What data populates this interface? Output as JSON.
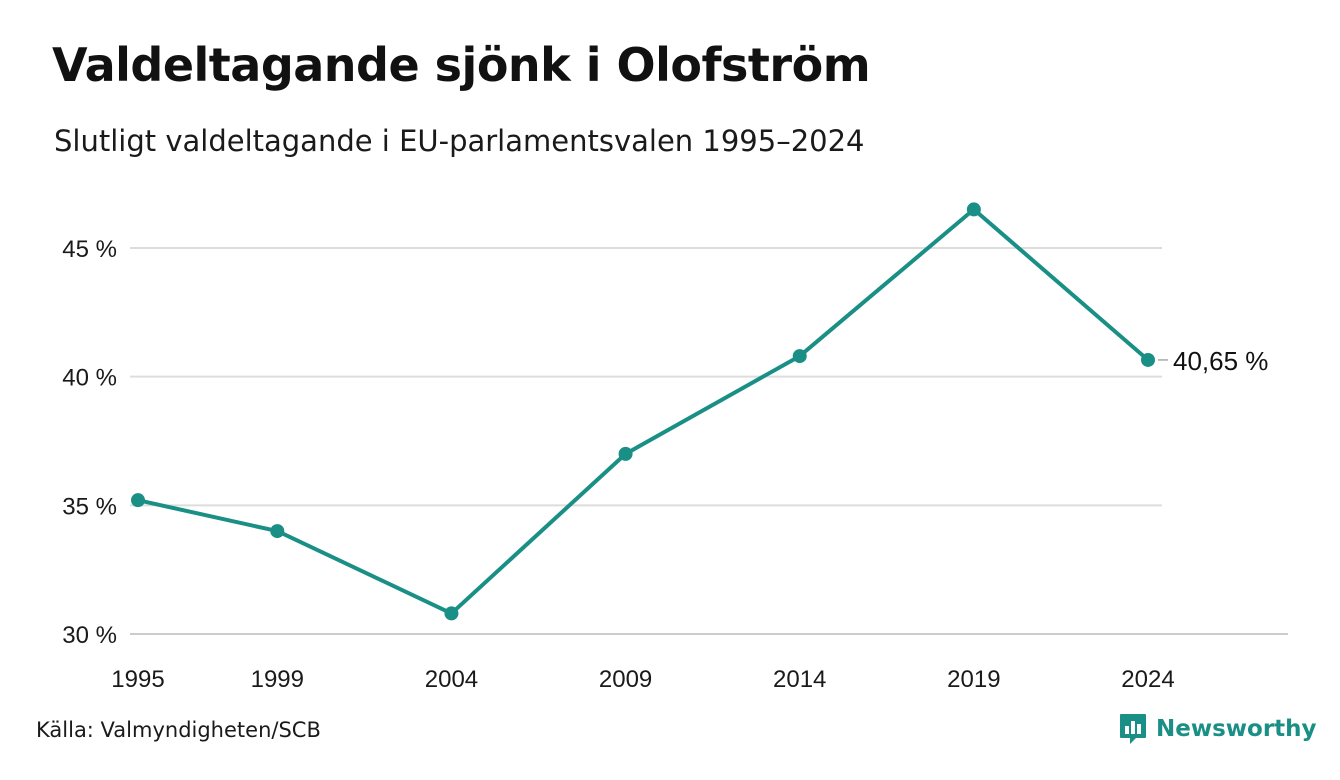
{
  "title": "Valdeltagande sjönk i Olofström",
  "subtitle": "Slutligt valdeltagande i EU-parlamentsvalen 1995–2024",
  "source": "Källa: Valmyndigheten/SCB",
  "brand": {
    "label": "Newsworthy",
    "icon": "newsworthy-logo-icon",
    "color": "#1a8f86"
  },
  "colors": {
    "line": "#1a8f86",
    "grid": "#dddddd",
    "axis": "#cccccc"
  },
  "chart_data": {
    "type": "line",
    "x": [
      "1995",
      "1999",
      "2004",
      "2009",
      "2014",
      "2019",
      "2024"
    ],
    "series": [
      {
        "values": [
          35.2,
          34.0,
          30.8,
          37.0,
          40.8,
          46.5,
          40.65
        ]
      }
    ],
    "y_ticks": [
      30,
      35,
      40,
      45
    ],
    "y_tick_labels": [
      "30 %",
      "35 %",
      "40 %",
      "45 %"
    ],
    "ylim": [
      30,
      47
    ],
    "grid": true,
    "legend": "none",
    "end_label": "40,65 %"
  }
}
